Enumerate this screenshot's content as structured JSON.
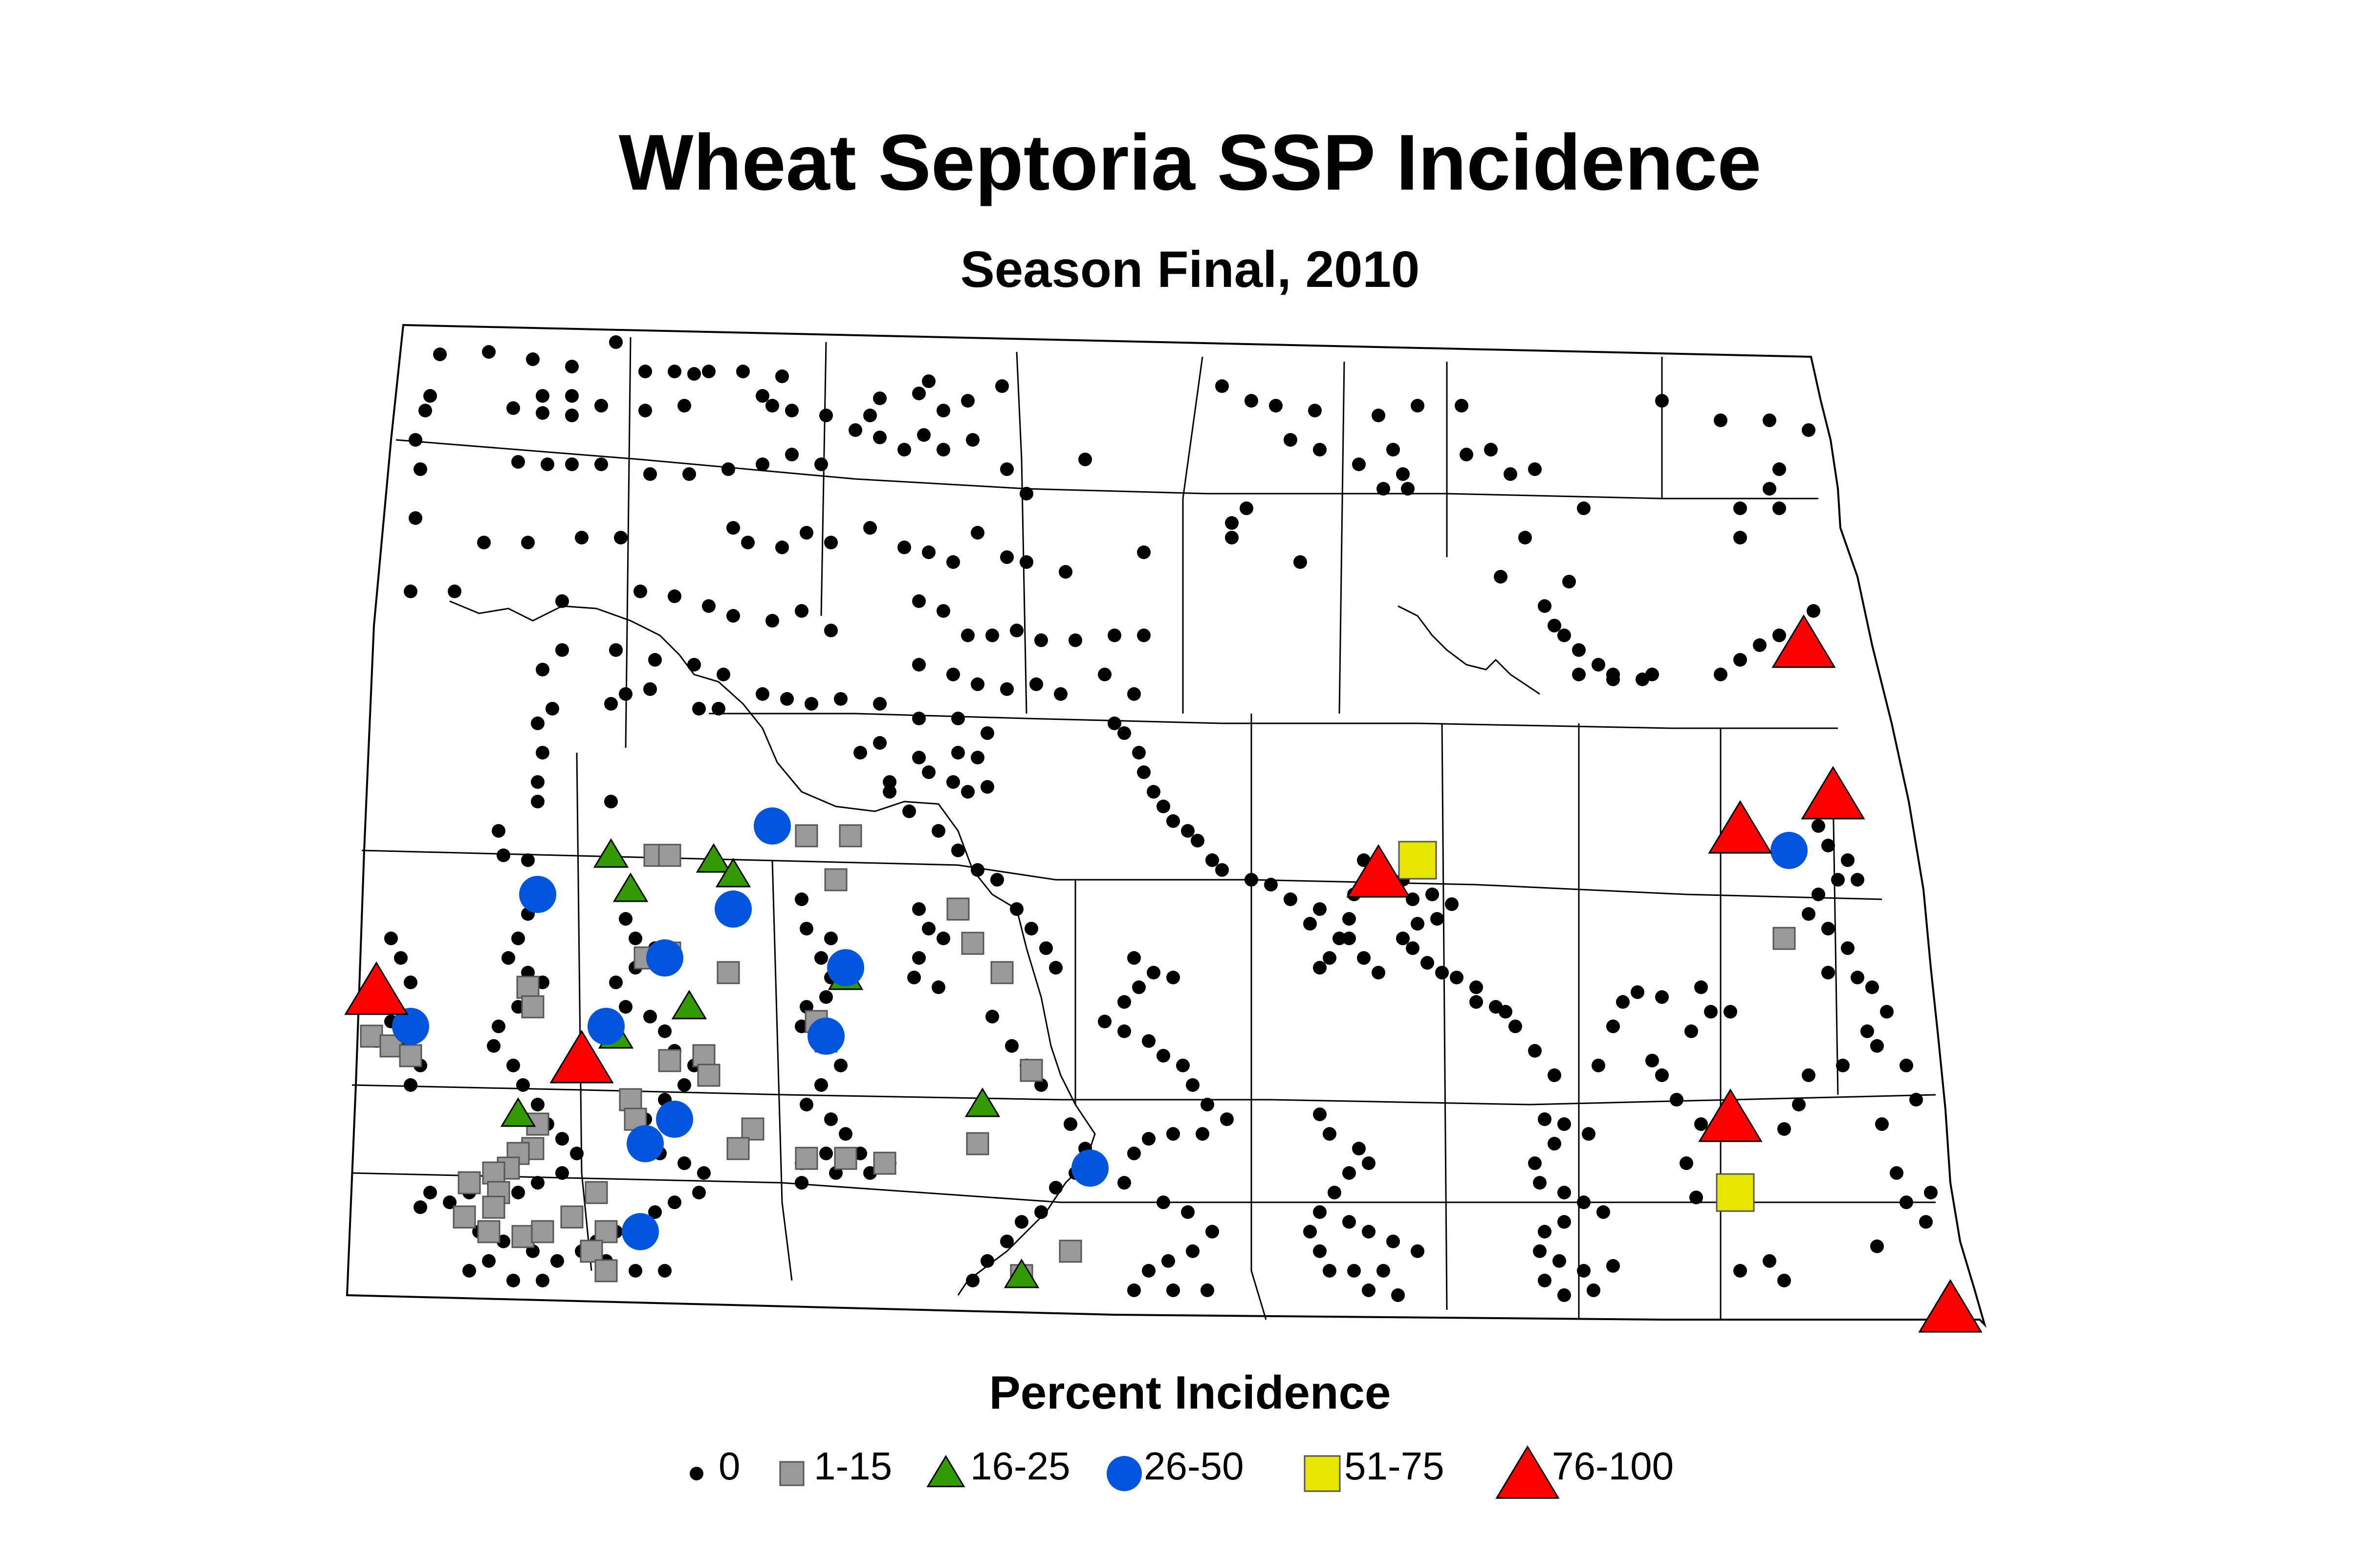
{
  "title": "Wheat Septoria SSP Incidence",
  "subtitle": "Season Final, 2010",
  "legend": {
    "title": "Percent Incidence",
    "classes": [
      {
        "label": "0",
        "marker": "dot",
        "color": "#000000"
      },
      {
        "label": "1-15",
        "marker": "square",
        "color": "#999999"
      },
      {
        "label": "16-25",
        "marker": "triangle",
        "color": "#339900"
      },
      {
        "label": "26-50",
        "marker": "circle",
        "color": "#0055dd"
      },
      {
        "label": "51-75",
        "marker": "square",
        "color": "#e6e600"
      },
      {
        "label": "76-100",
        "marker": "triangle",
        "color": "#ff0000"
      }
    ]
  },
  "map": {
    "region": "North Dakota counties",
    "background": "#ffffff",
    "boundary_color": "#000000"
  }
}
